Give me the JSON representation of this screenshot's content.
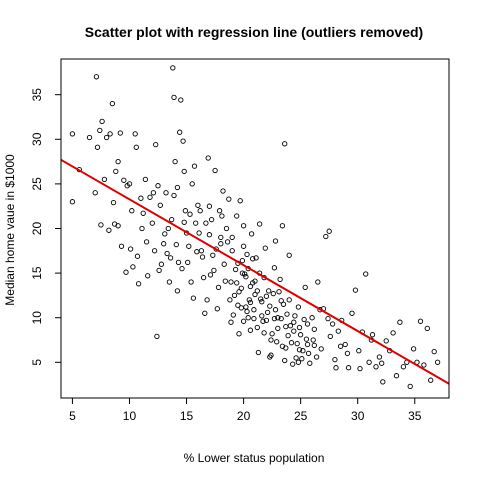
{
  "chart_data": {
    "type": "scatter",
    "title": "Scatter plot with regression line (outliers removed)",
    "xlabel": "% Lower status population",
    "ylabel": "Median home vaue in $1000",
    "xlim": [
      4,
      38
    ],
    "ylim": [
      1,
      39
    ],
    "x_ticks": [
      5,
      10,
      15,
      20,
      25,
      30,
      35
    ],
    "y_ticks": [
      5,
      10,
      15,
      20,
      25,
      30,
      35
    ],
    "grid": false,
    "legend": "none",
    "marker": "open-circle",
    "colors": {
      "points": "#000000",
      "regression_line": "#dd0000"
    },
    "regression_line": {
      "x": [
        4,
        38
      ],
      "y": [
        27.7,
        2.6
      ]
    },
    "points": [
      [
        5.0,
        30.6
      ],
      [
        5.0,
        23.0
      ],
      [
        5.6,
        26.6
      ],
      [
        6.5,
        30.2
      ],
      [
        7.1,
        37.0
      ],
      [
        7.2,
        29.1
      ],
      [
        7.4,
        31.0
      ],
      [
        7.6,
        32.0
      ],
      [
        7.0,
        24.0
      ],
      [
        7.5,
        20.4
      ],
      [
        7.8,
        25.5
      ],
      [
        8.0,
        30.2
      ],
      [
        8.3,
        30.6
      ],
      [
        8.5,
        34.0
      ],
      [
        8.6,
        22.9
      ],
      [
        8.8,
        26.4
      ],
      [
        9.0,
        27.5
      ],
      [
        9.2,
        30.7
      ],
      [
        9.5,
        25.4
      ],
      [
        9.0,
        20.3
      ],
      [
        9.8,
        24.8
      ],
      [
        10.0,
        25.0
      ],
      [
        10.2,
        22.0
      ],
      [
        10.5,
        30.6
      ],
      [
        10.6,
        29.1
      ],
      [
        10.3,
        15.7
      ],
      [
        10.7,
        16.9
      ],
      [
        11.0,
        23.4
      ],
      [
        11.2,
        21.7
      ],
      [
        11.5,
        18.5
      ],
      [
        11.8,
        23.5
      ],
      [
        12.0,
        20.6
      ],
      [
        12.1,
        24.0
      ],
      [
        12.5,
        24.8
      ],
      [
        12.3,
        29.4
      ],
      [
        12.7,
        22.6
      ],
      [
        12.8,
        16.0
      ],
      [
        13.0,
        18.3
      ],
      [
        13.3,
        17.2
      ],
      [
        13.5,
        14.0
      ],
      [
        13.7,
        21.0
      ],
      [
        13.8,
        38.0
      ],
      [
        13.9,
        34.7
      ],
      [
        14.0,
        27.5
      ],
      [
        14.2,
        24.6
      ],
      [
        14.4,
        30.8
      ],
      [
        14.5,
        34.4
      ],
      [
        14.7,
        29.8
      ],
      [
        14.8,
        26.4
      ],
      [
        14.9,
        22.0
      ],
      [
        15.0,
        19.5
      ],
      [
        15.2,
        18.0
      ],
      [
        15.5,
        25.0
      ],
      [
        15.7,
        27.0
      ],
      [
        15.8,
        20.6
      ],
      [
        16.0,
        22.6
      ],
      [
        16.3,
        17.5
      ],
      [
        16.5,
        14.5
      ],
      [
        16.7,
        20.6
      ],
      [
        16.9,
        27.9
      ],
      [
        17.0,
        19.3
      ],
      [
        17.2,
        21.0
      ],
      [
        17.4,
        15.3
      ],
      [
        17.5,
        26.5
      ],
      [
        17.6,
        17.7
      ],
      [
        17.9,
        22.0
      ],
      [
        18.0,
        19.0
      ],
      [
        18.2,
        24.2
      ],
      [
        18.3,
        16.0
      ],
      [
        18.5,
        20.0
      ],
      [
        18.7,
        23.3
      ],
      [
        18.9,
        14.0
      ],
      [
        19.0,
        17.5
      ],
      [
        19.2,
        12.5
      ],
      [
        19.4,
        21.4
      ],
      [
        19.5,
        16.1
      ],
      [
        19.7,
        23.1
      ],
      [
        19.9,
        15.0
      ],
      [
        20.0,
        18.0
      ],
      [
        20.2,
        11.2
      ],
      [
        20.4,
        10.0
      ],
      [
        20.6,
        13.5
      ],
      [
        20.8,
        16.6
      ],
      [
        21.0,
        12.6
      ],
      [
        21.2,
        8.9
      ],
      [
        21.4,
        15.0
      ],
      [
        21.6,
        11.8
      ],
      [
        21.8,
        14.5
      ],
      [
        22.0,
        9.7
      ],
      [
        22.2,
        13.0
      ],
      [
        22.4,
        7.5
      ],
      [
        22.6,
        12.7
      ],
      [
        22.8,
        10.9
      ],
      [
        23.0,
        8.8
      ],
      [
        23.2,
        14.3
      ],
      [
        23.4,
        6.8
      ],
      [
        23.6,
        29.5
      ],
      [
        23.8,
        10.4
      ],
      [
        24.0,
        12.0
      ],
      [
        24.2,
        7.2
      ],
      [
        24.4,
        9.5
      ],
      [
        24.6,
        5.5
      ],
      [
        24.8,
        11.2
      ],
      [
        25.0,
        8.1
      ],
      [
        25.2,
        6.3
      ],
      [
        25.4,
        13.4
      ],
      [
        25.6,
        7.0
      ],
      [
        25.8,
        4.9
      ],
      [
        26.0,
        10.0
      ],
      [
        26.2,
        8.7
      ],
      [
        26.5,
        14.0
      ],
      [
        26.8,
        6.5
      ],
      [
        27.0,
        11.0
      ],
      [
        27.2,
        19.1
      ],
      [
        27.5,
        19.7
      ],
      [
        27.8,
        9.3
      ],
      [
        28.0,
        5.3
      ],
      [
        28.3,
        8.5
      ],
      [
        28.6,
        9.7
      ],
      [
        28.9,
        7.0
      ],
      [
        29.2,
        4.4
      ],
      [
        29.5,
        10.5
      ],
      [
        29.8,
        13.1
      ],
      [
        30.1,
        6.3
      ],
      [
        30.4,
        8.4
      ],
      [
        30.7,
        14.9
      ],
      [
        31.0,
        5.0
      ],
      [
        31.3,
        8.1
      ],
      [
        31.6,
        4.5
      ],
      [
        31.9,
        5.6
      ],
      [
        32.2,
        2.8
      ],
      [
        32.5,
        7.4
      ],
      [
        32.8,
        6.3
      ],
      [
        33.1,
        8.3
      ],
      [
        33.4,
        3.5
      ],
      [
        33.7,
        9.5
      ],
      [
        34.0,
        4.5
      ],
      [
        34.3,
        5.0
      ],
      [
        34.6,
        2.3
      ],
      [
        34.9,
        6.5
      ],
      [
        35.2,
        5.0
      ],
      [
        35.5,
        9.6
      ],
      [
        35.8,
        4.7
      ],
      [
        36.1,
        8.8
      ],
      [
        36.4,
        3.0
      ],
      [
        36.7,
        6.2
      ],
      [
        37.0,
        5.0
      ],
      [
        12.4,
        7.9
      ],
      [
        10.1,
        17.7
      ],
      [
        11.4,
        25.5
      ],
      [
        17.1,
        14.8
      ],
      [
        18.1,
        21.4
      ],
      [
        18.6,
        18.5
      ],
      [
        19.3,
        15.4
      ],
      [
        19.8,
        13.3
      ],
      [
        20.3,
        17.1
      ],
      [
        20.7,
        19.4
      ],
      [
        21.1,
        16.7
      ],
      [
        21.5,
        12.1
      ],
      [
        22.1,
        10.6
      ],
      [
        22.7,
        15.6
      ],
      [
        23.1,
        12.9
      ],
      [
        23.5,
        11.5
      ],
      [
        24.1,
        9.1
      ],
      [
        24.5,
        10.2
      ],
      [
        24.9,
        6.4
      ],
      [
        25.3,
        9.8
      ],
      [
        21.3,
        6.1
      ],
      [
        22.3,
        5.6
      ],
      [
        23.7,
        6.6
      ],
      [
        24.3,
        4.8
      ],
      [
        25.1,
        5.4
      ],
      [
        26.1,
        7.5
      ],
      [
        26.4,
        5.6
      ],
      [
        27.4,
        9.9
      ],
      [
        28.1,
        4.4
      ],
      [
        29.1,
        6.0
      ],
      [
        30.2,
        4.3
      ],
      [
        31.2,
        7.5
      ],
      [
        32.1,
        4.9
      ],
      [
        16.1,
        19.5
      ],
      [
        16.4,
        16.8
      ],
      [
        16.8,
        12.0
      ],
      [
        17.3,
        17.0
      ],
      [
        17.7,
        11.0
      ],
      [
        18.4,
        14.1
      ],
      [
        18.8,
        12.0
      ],
      [
        19.1,
        10.3
      ],
      [
        19.6,
        8.2
      ],
      [
        20.1,
        14.9
      ],
      [
        20.5,
        12.0
      ],
      [
        20.9,
        10.9
      ],
      [
        21.7,
        9.6
      ],
      [
        22.5,
        8.2
      ],
      [
        22.9,
        7.3
      ],
      [
        23.3,
        9.9
      ],
      [
        23.9,
        8.0
      ],
      [
        24.7,
        7.1
      ],
      [
        25.5,
        7.6
      ],
      [
        25.7,
        6.0
      ],
      [
        15.1,
        16.2
      ],
      [
        15.4,
        14.0
      ],
      [
        15.6,
        12.2
      ],
      [
        15.9,
        17.4
      ],
      [
        14.1,
        18.2
      ],
      [
        14.3,
        16.2
      ],
      [
        14.6,
        15.5
      ],
      [
        13.1,
        19.4
      ],
      [
        13.4,
        20.0
      ],
      [
        13.6,
        16.7
      ],
      [
        12.2,
        17.5
      ],
      [
        12.6,
        15.3
      ],
      [
        11.1,
        20.0
      ],
      [
        11.6,
        14.7
      ],
      [
        10.8,
        13.8
      ],
      [
        9.3,
        18.0
      ],
      [
        9.7,
        15.1
      ],
      [
        8.2,
        19.8
      ],
      [
        8.7,
        20.5
      ],
      [
        16.6,
        10.5
      ],
      [
        17.8,
        13.4
      ],
      [
        18.9,
        9.5
      ],
      [
        19.5,
        11.4
      ],
      [
        20.6,
        8.6
      ],
      [
        21.8,
        8.3
      ],
      [
        22.4,
        5.8
      ],
      [
        23.6,
        5.2
      ],
      [
        24.8,
        5.0
      ],
      [
        20.0,
        20.3
      ],
      [
        19.0,
        19.0
      ],
      [
        18.0,
        18.3
      ],
      [
        17.0,
        22.5
      ],
      [
        16.2,
        22.0
      ],
      [
        15.3,
        21.6
      ],
      [
        14.8,
        20.7
      ],
      [
        13.9,
        23.7
      ],
      [
        13.2,
        24.0
      ],
      [
        14.2,
        13.0
      ],
      [
        21.9,
        17.8
      ],
      [
        22.8,
        18.6
      ],
      [
        23.4,
        20.3
      ],
      [
        24.0,
        17.0
      ],
      [
        21.4,
        20.5
      ],
      [
        20.8,
        13.9
      ],
      [
        19.9,
        16.4
      ],
      [
        20.2,
        14.6
      ],
      [
        20.4,
        15.5
      ],
      [
        20.6,
        11.7
      ],
      [
        21.0,
        14.1
      ],
      [
        21.2,
        13.0
      ],
      [
        19.4,
        13.9
      ],
      [
        19.6,
        12.9
      ],
      [
        19.8,
        11.1
      ],
      [
        20.0,
        9.6
      ],
      [
        20.3,
        10.7
      ],
      [
        20.9,
        9.9
      ],
      [
        21.6,
        10.2
      ],
      [
        22.0,
        12.4
      ],
      [
        22.3,
        11.3
      ],
      [
        22.7,
        9.9
      ],
      [
        23.0,
        10.0
      ],
      [
        23.3,
        11.9
      ],
      [
        23.7,
        9.0
      ],
      [
        24.4,
        8.5
      ],
      [
        24.9,
        8.9
      ],
      [
        25.6,
        9.3
      ],
      [
        26.2,
        6.9
      ],
      [
        26.7,
        10.9
      ],
      [
        27.6,
        7.9
      ],
      [
        28.5,
        6.8
      ]
    ]
  }
}
